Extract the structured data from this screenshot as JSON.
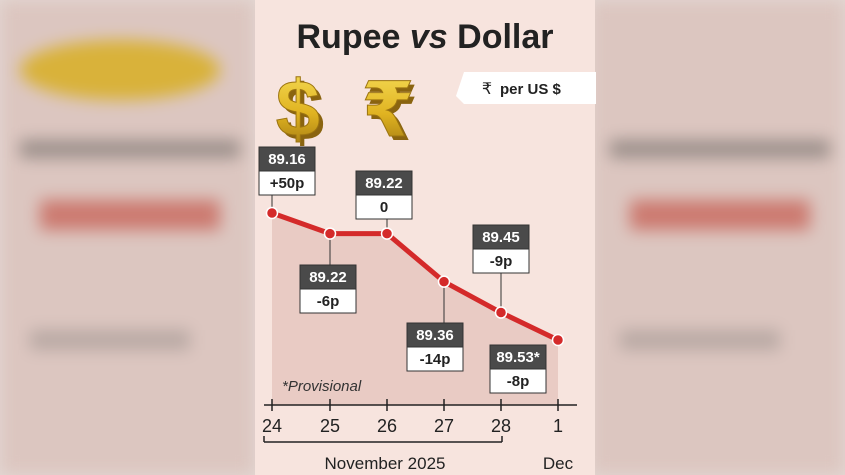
{
  "title_main": "Rupee ",
  "title_vs": "vs",
  "title_end": " Dollar",
  "unit_label": "per US $",
  "rupee_symbol": "₹",
  "dollar_symbol": "$",
  "note": "*Provisional",
  "colors": {
    "line": "#d42a2a",
    "value_box": "#4a4a4a",
    "gold": "#e0b321",
    "panel": "#f7e4de"
  },
  "chart_data": {
    "type": "line",
    "x": [
      "24",
      "25",
      "26",
      "27",
      "28",
      "1"
    ],
    "month_labels": [
      "November 2025",
      "Dec"
    ],
    "values": [
      89.16,
      89.22,
      89.22,
      89.36,
      89.45,
      89.53
    ],
    "value_labels": [
      "89.16",
      "89.22",
      "89.22",
      "89.36",
      "89.45",
      "89.53*"
    ],
    "change_labels": [
      "+50p",
      "-6p",
      "0",
      "-14p",
      "-9p",
      "-8p"
    ],
    "ylabel": "₹ per US $",
    "y_inverted": true,
    "grid": false
  }
}
